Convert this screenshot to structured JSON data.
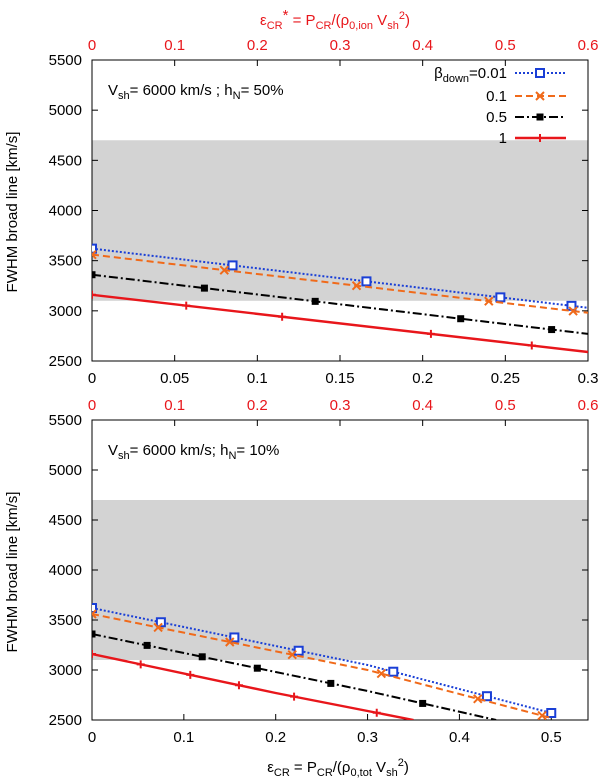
{
  "colors": {
    "band": "#d3d3d3",
    "beta_001": "#1a3fd6",
    "beta_01": "#f06a1a",
    "beta_05": "#000000",
    "beta_1": "#e8161b",
    "top_axis": "#e8161b"
  },
  "legend": {
    "entries": [
      {
        "label_main": "β",
        "label_sub": "down",
        "label_tail": "=0.01",
        "marker": "open-square",
        "color": "#1a3fd6",
        "dash": "2,2",
        "width": 2
      },
      {
        "label_main": "0.1",
        "marker": "cross",
        "color": "#f06a1a",
        "dash": "7,4",
        "width": 2
      },
      {
        "label_main": "0.5",
        "marker": "filled-square",
        "color": "#000000",
        "dash": "9,3,2,3",
        "width": 2
      },
      {
        "label_main": "1",
        "marker": "plus",
        "color": "#e8161b",
        "dash": "",
        "width": 2.4
      }
    ]
  },
  "chart_data": [
    {
      "type": "line",
      "id": "top",
      "annotation": {
        "v": "V",
        "v_sub": "sh",
        "v_tail": "= 6000 km/s ; h",
        "h_sub": "N",
        "h_tail": "= 50%"
      },
      "xlim": [
        0,
        0.3
      ],
      "ylim": [
        2500,
        5500
      ],
      "xticks": [
        "0",
        "0.05",
        "0.1",
        "0.15",
        "0.2",
        "0.25",
        "0.3"
      ],
      "xtick_values": [
        0,
        0.05,
        0.1,
        0.15,
        0.2,
        0.25,
        0.3
      ],
      "yticks": [
        "2500",
        "3000",
        "3500",
        "4000",
        "4500",
        "5000",
        "5500"
      ],
      "ytick_values": [
        2500,
        3000,
        3500,
        4000,
        4500,
        5000,
        5500
      ],
      "top_axis": {
        "label_parts": {
          "eps": "ε",
          "sub": "CR",
          "star": "*",
          "mid": " = P",
          "psub": "CR",
          "open": "/(ρ",
          "rsub": "0,ion",
          "v": " V",
          "vsub": "sh",
          "vsup": "2",
          "close": ")"
        },
        "ticks": [
          "0",
          "0.1",
          "0.2",
          "0.3",
          "0.4",
          "0.5",
          "0.6"
        ],
        "tick_values": [
          0,
          0.1,
          0.2,
          0.3,
          0.4,
          0.5,
          0.6
        ],
        "range": [
          0,
          0.6
        ]
      },
      "ylabel": "FWHM broad line  [km/s]",
      "band": [
        3100,
        4700
      ],
      "series": [
        {
          "name": "β_down=0.01",
          "x": [
            0,
            0.3
          ],
          "y": [
            3620,
            3030
          ],
          "marker_x": [
            0,
            0.085,
            0.166,
            0.247,
            0.29
          ]
        },
        {
          "name": "0.1",
          "x": [
            0,
            0.3
          ],
          "y": [
            3560,
            2980
          ],
          "marker_x": [
            0,
            0.08,
            0.16,
            0.24,
            0.291
          ]
        },
        {
          "name": "0.5",
          "x": [
            0,
            0.3
          ],
          "y": [
            3360,
            2770
          ],
          "marker_x": [
            0,
            0.068,
            0.135,
            0.223,
            0.278
          ]
        },
        {
          "name": "1",
          "x": [
            0,
            0.3
          ],
          "y": [
            3160,
            2590
          ],
          "marker_x": [
            0,
            0.057,
            0.115,
            0.205,
            0.266
          ]
        }
      ]
    },
    {
      "type": "line",
      "id": "bottom",
      "annotation": {
        "v": "V",
        "v_sub": "sh",
        "v_tail": "= 6000 km/s; h",
        "h_sub": "N",
        "h_tail": "= 10%"
      },
      "xlim": [
        0,
        0.54
      ],
      "ylim": [
        2500,
        5500
      ],
      "xticks": [
        "0",
        "0.1",
        "0.2",
        "0.3",
        "0.4",
        "0.5"
      ],
      "xtick_values": [
        0,
        0.1,
        0.2,
        0.3,
        0.4,
        0.5
      ],
      "yticks": [
        "2500",
        "3000",
        "3500",
        "4000",
        "4500",
        "5000",
        "5500"
      ],
      "ytick_values": [
        2500,
        3000,
        3500,
        4000,
        4500,
        5000,
        5500
      ],
      "top_axis": {
        "ticks": [
          "0",
          "0.1",
          "0.2",
          "0.3",
          "0.4",
          "0.5",
          "0.6"
        ],
        "tick_values": [
          0,
          0.1,
          0.2,
          0.3,
          0.4,
          0.5,
          0.6
        ],
        "range": [
          0,
          0.6
        ]
      },
      "ylabel": "FWHM broad line  [km/s]",
      "xlabel_parts": {
        "eps": "ε",
        "sub": "CR",
        "mid": " = P",
        "psub": "CR",
        "open": "/(ρ",
        "rsub": "0,tot",
        "v": " V",
        "vsub": "sh",
        "vsup": "2",
        "close": ")"
      },
      "band": [
        3100,
        4700
      ],
      "series": [
        {
          "name": "β_down=0.01",
          "x": [
            0,
            0.3,
            0.5
          ],
          "y": [
            3620,
            3050,
            2570
          ],
          "marker_x": [
            0,
            0.075,
            0.155,
            0.225,
            0.328,
            0.43,
            0.5
          ]
        },
        {
          "name": "0.1",
          "x": [
            0,
            0.3,
            0.5
          ],
          "y": [
            3560,
            3000,
            2520
          ],
          "marker_x": [
            0,
            0.072,
            0.15,
            0.218,
            0.315,
            0.42,
            0.49
          ]
        },
        {
          "name": "0.5",
          "x": [
            0,
            0.3,
            0.44
          ],
          "y": [
            3360,
            2790,
            2500
          ],
          "marker_x": [
            0,
            0.06,
            0.12,
            0.18,
            0.26,
            0.36
          ]
        },
        {
          "name": "1",
          "x": [
            0,
            0.2,
            0.35
          ],
          "y": [
            3160,
            2770,
            2500
          ],
          "marker_x": [
            0,
            0.053,
            0.107,
            0.16,
            0.22,
            0.31
          ]
        }
      ]
    }
  ]
}
